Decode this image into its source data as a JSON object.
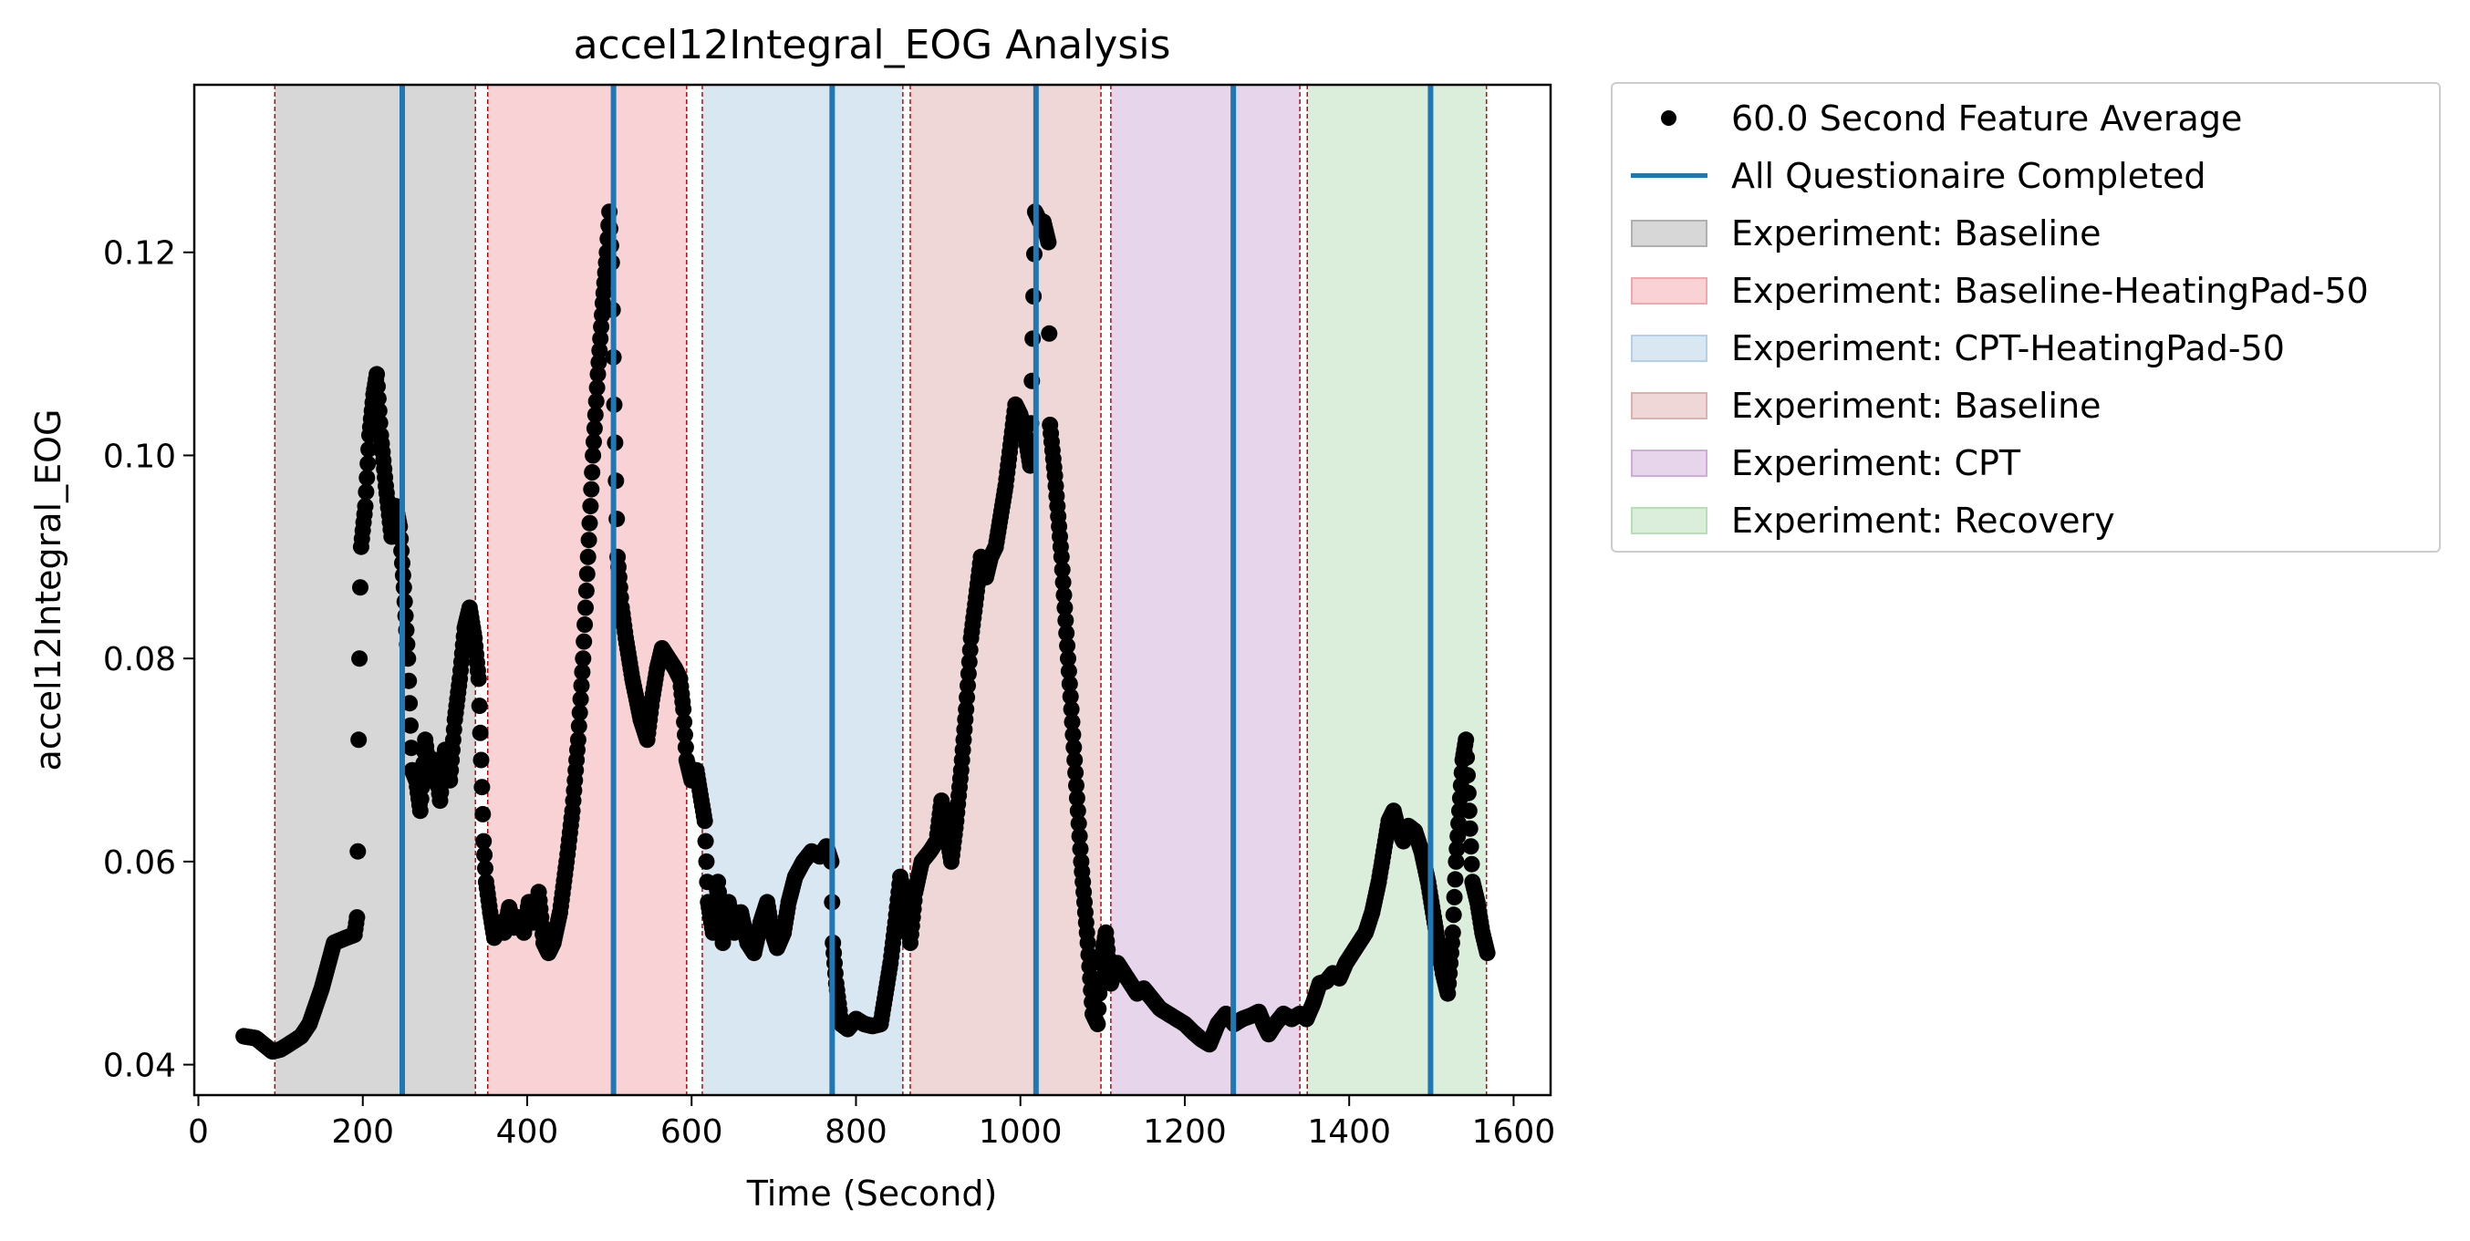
{
  "chart_data": {
    "type": "scatter",
    "title": "accel12Integral_EOG Analysis",
    "xlabel": "Time (Second)",
    "ylabel": "accel12Integral_EOG",
    "xlim": [
      -5,
      1645
    ],
    "ylim": [
      0.037,
      0.1365
    ],
    "xticks": [
      0,
      200,
      400,
      600,
      800,
      1000,
      1200,
      1400,
      1600
    ],
    "xtick_labels": [
      "0",
      "200",
      "400",
      "600",
      "800",
      "1000",
      "1200",
      "1400",
      "1600"
    ],
    "yticks": [
      0.04,
      0.06,
      0.08,
      0.1,
      0.12
    ],
    "ytick_labels": [
      "0.04",
      "0.06",
      "0.08",
      "0.10",
      "0.12"
    ],
    "grid": false,
    "legend_position": "outside-right-top",
    "series": [
      {
        "name": "60.0 Second Feature Average",
        "color": "#000000",
        "anchors": [
          [
            55,
            0.0428
          ],
          [
            70,
            0.0426
          ],
          [
            90,
            0.0413
          ],
          [
            100,
            0.0415
          ],
          [
            110,
            0.042
          ],
          [
            125,
            0.0428
          ],
          [
            135,
            0.044
          ],
          [
            150,
            0.0475
          ],
          [
            160,
            0.0505
          ],
          [
            165,
            0.052
          ],
          [
            180,
            0.0525
          ],
          [
            190,
            0.0528
          ],
          [
            193,
            0.0545
          ],
          [
            194,
            0.061
          ],
          [
            195,
            0.072
          ],
          [
            196,
            0.08
          ],
          [
            197,
            0.087
          ],
          [
            198,
            0.091
          ],
          [
            203,
            0.095
          ],
          [
            208,
            0.102
          ],
          [
            213,
            0.106
          ],
          [
            217,
            0.108
          ],
          [
            222,
            0.102
          ],
          [
            228,
            0.097
          ],
          [
            235,
            0.092
          ],
          [
            240,
            0.095
          ],
          [
            245,
            0.093
          ],
          [
            250,
            0.087
          ],
          [
            255,
            0.08
          ],
          [
            260,
            0.069
          ],
          [
            265,
            0.068
          ],
          [
            270,
            0.065
          ],
          [
            276,
            0.072
          ],
          [
            282,
            0.068
          ],
          [
            288,
            0.07
          ],
          [
            294,
            0.066
          ],
          [
            300,
            0.071
          ],
          [
            306,
            0.068
          ],
          [
            312,
            0.074
          ],
          [
            318,
            0.078
          ],
          [
            324,
            0.083
          ],
          [
            330,
            0.085
          ],
          [
            336,
            0.082
          ],
          [
            341,
            0.078
          ],
          [
            344,
            0.07
          ],
          [
            347,
            0.062
          ],
          [
            350,
            0.058
          ],
          [
            355,
            0.055
          ],
          [
            360,
            0.0525
          ],
          [
            366,
            0.054
          ],
          [
            372,
            0.053
          ],
          [
            378,
            0.0555
          ],
          [
            384,
            0.0535
          ],
          [
            390,
            0.0545
          ],
          [
            396,
            0.053
          ],
          [
            402,
            0.056
          ],
          [
            408,
            0.054
          ],
          [
            414,
            0.057
          ],
          [
            420,
            0.052
          ],
          [
            426,
            0.051
          ],
          [
            432,
            0.052
          ],
          [
            440,
            0.055
          ],
          [
            448,
            0.06
          ],
          [
            455,
            0.065
          ],
          [
            462,
            0.072
          ],
          [
            468,
            0.08
          ],
          [
            474,
            0.09
          ],
          [
            480,
            0.1
          ],
          [
            486,
            0.108
          ],
          [
            492,
            0.115
          ],
          [
            497,
            0.12
          ],
          [
            500,
            0.124
          ],
          [
            503,
            0.119
          ],
          [
            506,
            0.105
          ],
          [
            510,
            0.09
          ],
          [
            515,
            0.085
          ],
          [
            520,
            0.082
          ],
          [
            528,
            0.078
          ],
          [
            538,
            0.074
          ],
          [
            546,
            0.072
          ],
          [
            552,
            0.076
          ],
          [
            558,
            0.079
          ],
          [
            564,
            0.081
          ],
          [
            572,
            0.08
          ],
          [
            580,
            0.079
          ],
          [
            586,
            0.078
          ],
          [
            590,
            0.075
          ],
          [
            594,
            0.07
          ],
          [
            600,
            0.068
          ],
          [
            606,
            0.069
          ],
          [
            612,
            0.066
          ],
          [
            616,
            0.064
          ],
          [
            620,
            0.056
          ],
          [
            626,
            0.053
          ],
          [
            632,
            0.058
          ],
          [
            638,
            0.052
          ],
          [
            645,
            0.056
          ],
          [
            652,
            0.053
          ],
          [
            660,
            0.055
          ],
          [
            668,
            0.052
          ],
          [
            676,
            0.051
          ],
          [
            684,
            0.054
          ],
          [
            692,
            0.056
          ],
          [
            698,
            0.053
          ],
          [
            704,
            0.0515
          ],
          [
            712,
            0.053
          ],
          [
            718,
            0.056
          ],
          [
            726,
            0.0585
          ],
          [
            736,
            0.06
          ],
          [
            746,
            0.061
          ],
          [
            756,
            0.0605
          ],
          [
            764,
            0.0615
          ],
          [
            770,
            0.06
          ],
          [
            772,
            0.052
          ],
          [
            776,
            0.048
          ],
          [
            782,
            0.044
          ],
          [
            790,
            0.0435
          ],
          [
            800,
            0.0445
          ],
          [
            810,
            0.044
          ],
          [
            820,
            0.0438
          ],
          [
            830,
            0.044
          ],
          [
            836,
            0.047
          ],
          [
            842,
            0.05
          ],
          [
            848,
            0.054
          ],
          [
            854,
            0.0585
          ],
          [
            860,
            0.056
          ],
          [
            866,
            0.052
          ],
          [
            872,
            0.057
          ],
          [
            880,
            0.06
          ],
          [
            890,
            0.061
          ],
          [
            898,
            0.062
          ],
          [
            904,
            0.066
          ],
          [
            910,
            0.063
          ],
          [
            916,
            0.06
          ],
          [
            922,
            0.064
          ],
          [
            928,
            0.069
          ],
          [
            934,
            0.075
          ],
          [
            940,
            0.082
          ],
          [
            946,
            0.086
          ],
          [
            952,
            0.09
          ],
          [
            958,
            0.088
          ],
          [
            964,
            0.09
          ],
          [
            970,
            0.091
          ],
          [
            976,
            0.094
          ],
          [
            982,
            0.097
          ],
          [
            988,
            0.101
          ],
          [
            994,
            0.105
          ],
          [
            1000,
            0.104
          ],
          [
            1006,
            0.102
          ],
          [
            1012,
            0.099
          ],
          [
            1018,
            0.124
          ],
          [
            1024,
            0.123
          ],
          [
            1028,
            0.123
          ],
          [
            1034,
            0.121
          ],
          [
            1036,
            0.103
          ],
          [
            1042,
            0.098
          ],
          [
            1050,
            0.09
          ],
          [
            1058,
            0.08
          ],
          [
            1066,
            0.07
          ],
          [
            1074,
            0.06
          ],
          [
            1082,
            0.052
          ],
          [
            1088,
            0.045
          ],
          [
            1094,
            0.044
          ],
          [
            1098,
            0.05
          ],
          [
            1104,
            0.053
          ],
          [
            1110,
            0.048
          ],
          [
            1118,
            0.05
          ],
          [
            1126,
            0.049
          ],
          [
            1134,
            0.048
          ],
          [
            1142,
            0.047
          ],
          [
            1150,
            0.0475
          ],
          [
            1160,
            0.0465
          ],
          [
            1170,
            0.0455
          ],
          [
            1180,
            0.045
          ],
          [
            1190,
            0.0445
          ],
          [
            1200,
            0.044
          ],
          [
            1210,
            0.0432
          ],
          [
            1220,
            0.0425
          ],
          [
            1230,
            0.042
          ],
          [
            1240,
            0.044
          ],
          [
            1250,
            0.045
          ],
          [
            1260,
            0.044
          ],
          [
            1270,
            0.0445
          ],
          [
            1280,
            0.0448
          ],
          [
            1290,
            0.0452
          ],
          [
            1296,
            0.044
          ],
          [
            1302,
            0.043
          ],
          [
            1310,
            0.044
          ],
          [
            1320,
            0.045
          ],
          [
            1330,
            0.0445
          ],
          [
            1340,
            0.045
          ],
          [
            1348,
            0.0445
          ],
          [
            1356,
            0.046
          ],
          [
            1364,
            0.048
          ],
          [
            1372,
            0.0482
          ],
          [
            1380,
            0.049
          ],
          [
            1388,
            0.0485
          ],
          [
            1396,
            0.05
          ],
          [
            1404,
            0.051
          ],
          [
            1412,
            0.052
          ],
          [
            1420,
            0.053
          ],
          [
            1428,
            0.055
          ],
          [
            1436,
            0.058
          ],
          [
            1442,
            0.061
          ],
          [
            1448,
            0.064
          ],
          [
            1454,
            0.065
          ],
          [
            1460,
            0.063
          ],
          [
            1466,
            0.062
          ],
          [
            1472,
            0.0635
          ],
          [
            1480,
            0.063
          ],
          [
            1488,
            0.061
          ],
          [
            1496,
            0.058
          ],
          [
            1502,
            0.055
          ],
          [
            1508,
            0.052
          ],
          [
            1514,
            0.049
          ],
          [
            1520,
            0.047
          ],
          [
            1526,
            0.053
          ],
          [
            1530,
            0.06
          ],
          [
            1534,
            0.065
          ],
          [
            1538,
            0.07
          ],
          [
            1542,
            0.072
          ],
          [
            1546,
            0.065
          ],
          [
            1550,
            0.058
          ],
          [
            1556,
            0.056
          ],
          [
            1562,
            0.053
          ],
          [
            1568,
            0.051
          ]
        ]
      }
    ],
    "questionnaire_lines": {
      "name": "All Questionaire Completed",
      "color": "#1f77b4",
      "x": [
        248,
        505,
        771,
        1019,
        1259,
        1499
      ]
    },
    "regions": [
      {
        "name": "Experiment: Baseline",
        "start": 93,
        "end": 337,
        "color": "#b0b0b0"
      },
      {
        "name": "Experiment: Baseline-HeatingPad-50",
        "start": 352,
        "end": 594,
        "color": "#f4a6ab"
      },
      {
        "name": "Experiment: CPT-HeatingPad-50",
        "start": 613,
        "end": 857,
        "color": "#b4cfe6"
      },
      {
        "name": "Experiment: Baseline",
        "start": 866,
        "end": 1098,
        "color": "#dfb0b0"
      },
      {
        "name": "Experiment: CPT",
        "start": 1110,
        "end": 1340,
        "color": "#cfacd8"
      },
      {
        "name": "Experiment: Recovery",
        "start": 1349,
        "end": 1567,
        "color": "#b8deb8"
      }
    ],
    "boundary_lines": [
      93,
      337,
      352,
      594,
      613,
      857,
      866,
      1098,
      1110,
      1340,
      1349,
      1567
    ],
    "boundary_color": "#cc0000"
  },
  "legend": {
    "items": [
      {
        "label": "60.0 Second Feature Average",
        "kind": "dot",
        "color": "#000000"
      },
      {
        "label": "All Questionaire Completed",
        "kind": "line",
        "color": "#1f77b4"
      },
      {
        "label": "Experiment: Baseline",
        "kind": "patch",
        "color": "#b0b0b0"
      },
      {
        "label": "Experiment: Baseline-HeatingPad-50",
        "kind": "patch",
        "color": "#f4a6ab"
      },
      {
        "label": "Experiment: CPT-HeatingPad-50",
        "kind": "patch",
        "color": "#b4cfe6"
      },
      {
        "label": "Experiment: Baseline",
        "kind": "patch",
        "color": "#dfb0b0"
      },
      {
        "label": "Experiment: CPT",
        "kind": "patch",
        "color": "#cfacd8"
      },
      {
        "label": "Experiment: Recovery",
        "kind": "patch",
        "color": "#b8deb8"
      }
    ]
  }
}
